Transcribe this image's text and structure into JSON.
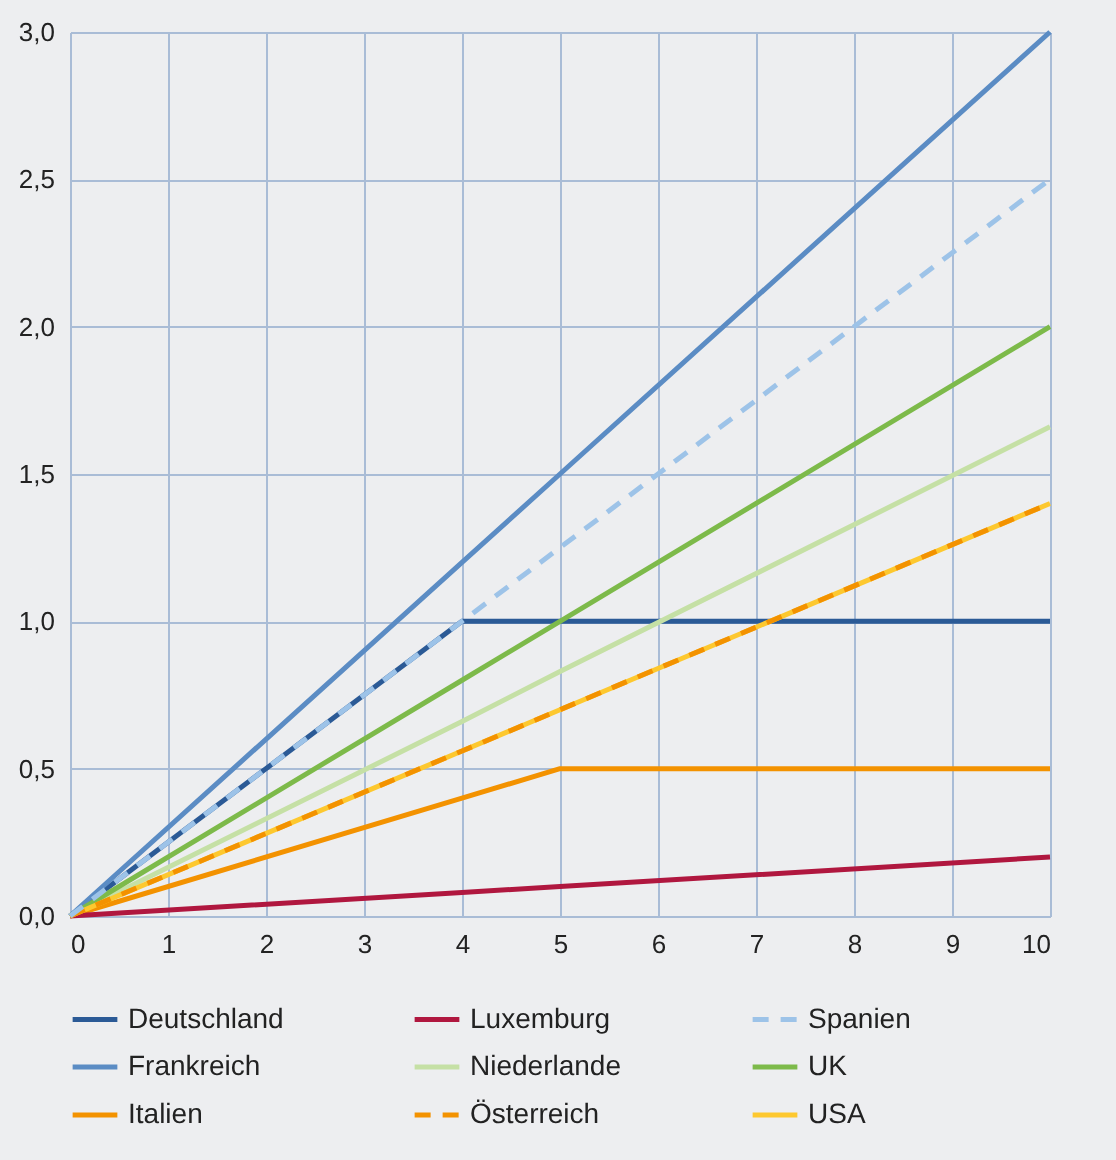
{
  "chart_data": {
    "type": "line",
    "x": [
      0,
      4,
      5,
      10
    ],
    "xlim": [
      0,
      10
    ],
    "xticks": [
      0,
      1,
      2,
      3,
      4,
      5,
      6,
      7,
      8,
      9,
      10
    ],
    "ylim": [
      0,
      3
    ],
    "yticks": [
      {
        "value": 0,
        "label": "0,0"
      },
      {
        "value": 0.5,
        "label": "0,5"
      },
      {
        "value": 1,
        "label": "1,0"
      },
      {
        "value": 1.5,
        "label": "1,5"
      },
      {
        "value": 2,
        "label": "2,0"
      },
      {
        "value": 2.5,
        "label": "2,5"
      },
      {
        "value": 3,
        "label": "3,0"
      }
    ],
    "grid": true,
    "legend": "bottom",
    "marker": "none",
    "line_style": "solid",
    "series": [
      {
        "name": "Deutschland",
        "color": "#2b5a96",
        "values": [
          0,
          1,
          1,
          1
        ]
      },
      {
        "name": "Frankreich",
        "color": "#5b8cc4",
        "values": [
          0,
          1.2,
          1.5,
          3
        ]
      },
      {
        "name": "Italien",
        "color": "#f39200",
        "values": [
          0,
          0.4,
          0.5,
          0.5
        ]
      },
      {
        "name": "Luxemburg",
        "color": "#b0173f",
        "values": [
          0,
          0.08,
          0.1,
          0.2
        ]
      },
      {
        "name": "Niederlande",
        "color": "#c5e0a5",
        "values": [
          0,
          0.66,
          0.83,
          1.66
        ]
      },
      {
        "name": "Österreich",
        "color": "#f39200",
        "line_style": "dashed",
        "values": [
          0,
          0.56,
          0.7,
          1.4
        ]
      },
      {
        "name": "Spanien",
        "color": "#9dc3e8",
        "line_style": "dashed",
        "values": [
          0,
          1,
          1.25,
          2.5
        ]
      },
      {
        "name": "UK",
        "color": "#7dba4a",
        "values": [
          0,
          0.8,
          1,
          2
        ]
      },
      {
        "name": "USA",
        "color": "#fdc82f",
        "values": [
          0,
          0.56,
          0.7,
          1.4
        ]
      }
    ]
  }
}
